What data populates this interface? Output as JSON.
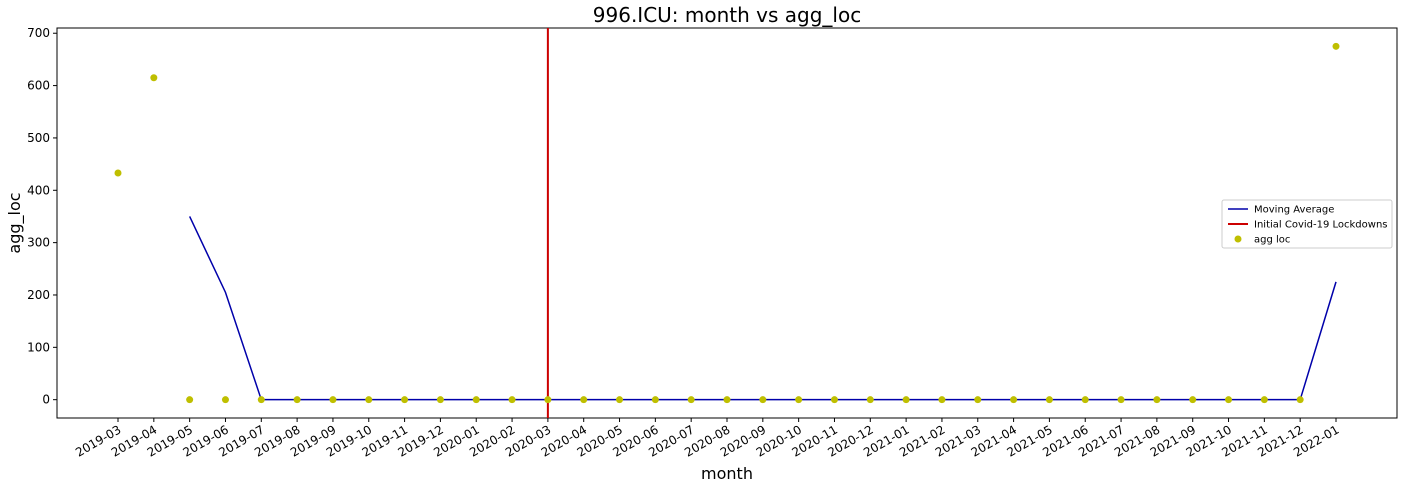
{
  "chart_data": {
    "type": "line+scatter",
    "title": "996.ICU: month vs agg_loc",
    "xlabel": "month",
    "ylabel": "agg_loc",
    "ylim": [
      -35,
      710
    ],
    "yticks": [
      0,
      100,
      200,
      300,
      400,
      500,
      600,
      700
    ],
    "categories": [
      "2019-03",
      "2019-04",
      "2019-05",
      "2019-06",
      "2019-07",
      "2019-08",
      "2019-09",
      "2019-10",
      "2019-11",
      "2019-12",
      "2020-01",
      "2020-02",
      "2020-03",
      "2020-04",
      "2020-05",
      "2020-06",
      "2020-07",
      "2020-08",
      "2020-09",
      "2020-10",
      "2020-11",
      "2020-12",
      "2021-01",
      "2021-02",
      "2021-03",
      "2021-04",
      "2021-05",
      "2021-06",
      "2021-07",
      "2021-08",
      "2021-09",
      "2021-10",
      "2021-11",
      "2021-12",
      "2022-01"
    ],
    "series": [
      {
        "name": "Moving Average",
        "kind": "line",
        "color": "#0000aa",
        "values": [
          null,
          null,
          350,
          205,
          0,
          0,
          0,
          0,
          0,
          0,
          0,
          0,
          0,
          0,
          0,
          0,
          0,
          0,
          0,
          0,
          0,
          0,
          0,
          0,
          0,
          0,
          0,
          0,
          0,
          0,
          0,
          0,
          0,
          0,
          225
        ]
      },
      {
        "name": "agg loc",
        "kind": "scatter",
        "color": "#bfbf00",
        "values": [
          433,
          615,
          0,
          0,
          0,
          0,
          0,
          0,
          0,
          0,
          0,
          0,
          0,
          0,
          0,
          0,
          0,
          0,
          0,
          0,
          0,
          0,
          0,
          0,
          0,
          0,
          0,
          0,
          0,
          0,
          0,
          0,
          0,
          0,
          675
        ]
      }
    ],
    "vline": {
      "name": "Initial Covid-19 Lockdowns",
      "x": "2020-03",
      "color": "#cc0000"
    },
    "legend": {
      "placement": "right",
      "entries": [
        "Moving Average",
        "Initial Covid-19 Lockdowns",
        "agg loc"
      ]
    },
    "grid": false
  }
}
